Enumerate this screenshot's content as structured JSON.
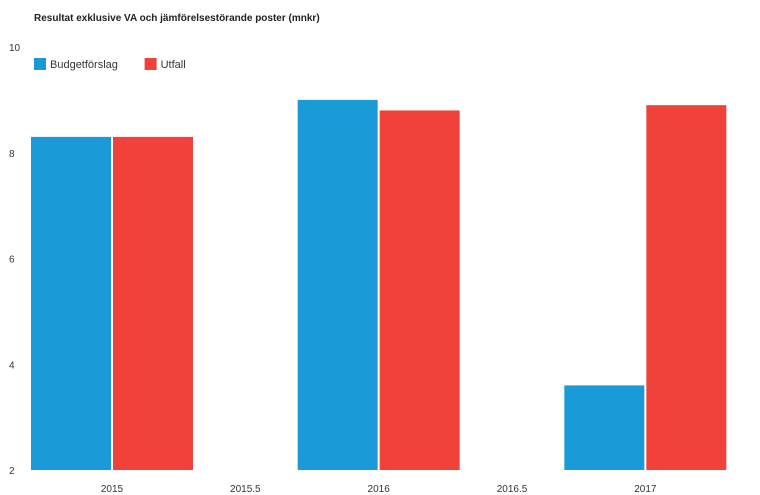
{
  "chart_data": {
    "type": "bar",
    "title": "Resultat exklusive VA och jämförelsestörande poster (mnkr)",
    "xlabel": "",
    "ylabel": "",
    "categories": [
      "2015",
      "2016",
      "2017"
    ],
    "x_ticks": [
      "2015",
      "2015.5",
      "2016",
      "2016.5",
      "2017"
    ],
    "y_ticks": [
      "2",
      "4",
      "6",
      "8",
      "10"
    ],
    "ylim": [
      2,
      10
    ],
    "grid": false,
    "legend_position": "top-left",
    "series": [
      {
        "name": "Budgetförslag",
        "color": "#1a9bd7",
        "values": [
          8.3,
          9.0,
          3.6
        ]
      },
      {
        "name": "Utfall",
        "color": "#f0423a",
        "values": [
          8.3,
          8.8,
          8.9
        ]
      }
    ]
  }
}
